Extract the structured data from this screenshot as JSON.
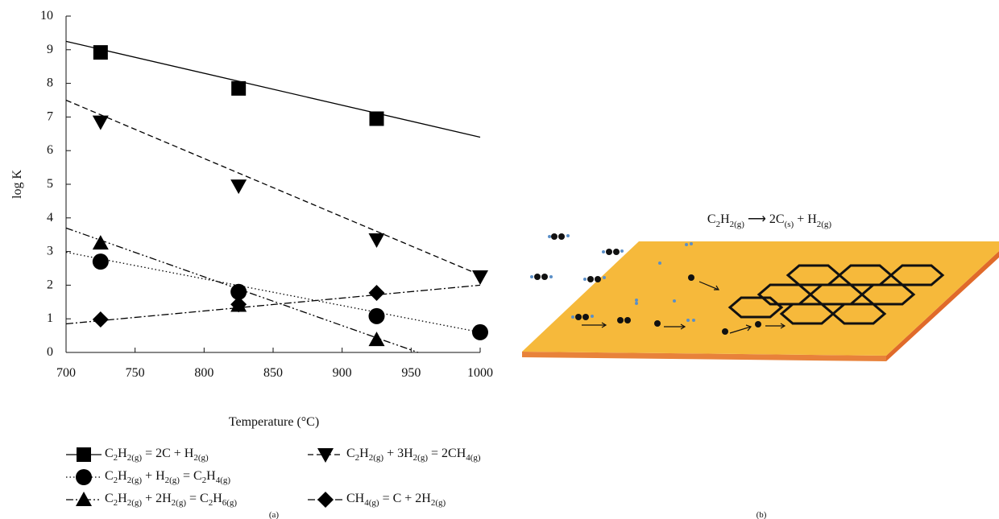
{
  "chart_data": {
    "type": "line",
    "xlabel": "Temperature (°C)",
    "ylabel": "log K",
    "xlim": [
      700,
      1000
    ],
    "ylim": [
      0,
      10
    ],
    "xticks": [
      700,
      750,
      800,
      850,
      900,
      950,
      1000
    ],
    "yticks": [
      0,
      1,
      2,
      3,
      4,
      5,
      6,
      7,
      8,
      9,
      10
    ],
    "series": [
      {
        "name": "C2H2(g) = 2C + H2(g)",
        "color": "#000000",
        "marker": "square",
        "line_style": "solid",
        "x": [
          725,
          825,
          925
        ],
        "values": [
          8.92,
          7.85,
          6.95
        ],
        "fit": {
          "x": [
            700,
            1000
          ],
          "values": [
            9.25,
            6.4
          ]
        }
      },
      {
        "name": "C2H2(g) + H2(g) = C2H4(g)",
        "color": "#000000",
        "marker": "circle",
        "line_style": "dotted",
        "x": [
          725,
          825,
          925,
          1000
        ],
        "values": [
          2.7,
          1.8,
          1.08,
          0.6
        ],
        "fit": {
          "x": [
            700,
            1000
          ],
          "values": [
            2.98,
            0.6
          ]
        }
      },
      {
        "name": "C2H2(g) + 2H2(g) = C2H6(g)",
        "color": "#000000",
        "marker": "triangle",
        "line_style": "dash-dot-dot",
        "x": [
          725,
          825,
          925
        ],
        "values": [
          3.25,
          1.4,
          0.38
        ],
        "fit": {
          "x": [
            700,
            955
          ],
          "values": [
            3.7,
            0
          ]
        }
      },
      {
        "name": "C2H2(g) + 3H2(g) = 2CH4(g)",
        "color": "#000000",
        "marker": "triangle-down",
        "line_style": "dashed",
        "x": [
          725,
          825,
          925,
          1000
        ],
        "values": [
          6.85,
          4.95,
          3.35,
          2.25
        ],
        "fit": {
          "x": [
            700,
            1000
          ],
          "values": [
            7.5,
            2.3
          ]
        }
      },
      {
        "name": "CH4(g) = C + 2H2(g)",
        "color": "#000000",
        "marker": "diamond",
        "line_style": "dash-dot",
        "x": [
          725,
          825,
          925
        ],
        "values": [
          0.98,
          1.43,
          1.77
        ],
        "fit": {
          "x": [
            700,
            1000
          ],
          "values": [
            0.85,
            2.0
          ]
        }
      }
    ],
    "caption": "(a)"
  },
  "diagram": {
    "equation": "C2H2(g) ⟶ 2C(s) + H2(g)",
    "caption": "(b)"
  }
}
